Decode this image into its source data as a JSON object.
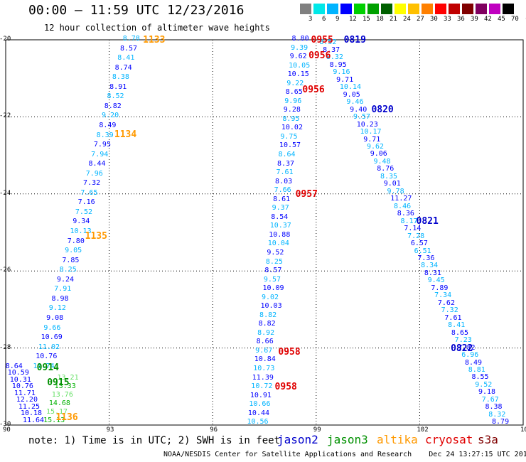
{
  "header": {
    "title": "00:00 — 11:59 UTC 12/23/2016",
    "subtitle": "12 hour collection of altimeter wave heights"
  },
  "color_scale": {
    "labels": [
      "3",
      "6",
      "9",
      "12",
      "15",
      "18",
      "21",
      "24",
      "27",
      "30",
      "33",
      "36",
      "39",
      "42",
      "45",
      "70",
      "(ft)"
    ],
    "colors": [
      "#808080",
      "#00e8e8",
      "#00b4ff",
      "#0000ff",
      "#00d000",
      "#00a000",
      "#006000",
      "#ffff00",
      "#ffc000",
      "#ff8000",
      "#ff0000",
      "#c00000",
      "#800000",
      "#800060",
      "#c000c0",
      "#000000"
    ]
  },
  "map": {
    "lon_ticks": [
      "90",
      "93",
      "96",
      "99",
      "102",
      "105"
    ],
    "lat_ticks": [
      "-20",
      "-22",
      "-24",
      "-26",
      "-28",
      "-30"
    ],
    "lon_range": [
      90,
      105
    ],
    "lat_range": [
      -20,
      -30
    ]
  },
  "legend": {
    "note": "note: 1) Time is in UTC; 2) SWH is in feet",
    "satellites": [
      {
        "name": "jason2",
        "color": "#0000cc"
      },
      {
        "name": "jason3",
        "color": "#009000"
      },
      {
        "name": "altika",
        "color": "#ff9900"
      },
      {
        "name": "cryosat",
        "color": "#e00000"
      },
      {
        "name": "s3a",
        "color": "#800000"
      }
    ]
  },
  "credit": "NOAA/NESDIS Center for Satellite Applications and Research    Dec 24 13:27:15 UTC 2016",
  "track_labels": [
    {
      "text": "1133",
      "lon": 93.98,
      "lat": -20.0,
      "color": "#ff9900"
    },
    {
      "text": "1134",
      "lon": 93.15,
      "lat": -22.45,
      "color": "#ff9900"
    },
    {
      "text": "1135",
      "lon": 92.3,
      "lat": -25.1,
      "color": "#ff9900"
    },
    {
      "text": "1136",
      "lon": 91.45,
      "lat": -29.8,
      "color": "#ff9900"
    },
    {
      "text": "0955",
      "lon": 98.85,
      "lat": -20.0,
      "color": "#e00000"
    },
    {
      "text": "0956",
      "lon": 98.78,
      "lat": -20.4,
      "color": "#e00000"
    },
    {
      "text": "0956",
      "lon": 98.6,
      "lat": -21.3,
      "color": "#e00000"
    },
    {
      "text": "0957",
      "lon": 98.4,
      "lat": -24.0,
      "color": "#e00000"
    },
    {
      "text": "0958",
      "lon": 97.9,
      "lat": -28.1,
      "color": "#e00000"
    },
    {
      "text": "0958",
      "lon": 97.8,
      "lat": -29.0,
      "color": "#e00000"
    },
    {
      "text": "0819",
      "lon": 99.8,
      "lat": -20.0,
      "color": "#0000cc"
    },
    {
      "text": "0820",
      "lon": 100.6,
      "lat": -21.8,
      "color": "#0000cc"
    },
    {
      "text": "0821",
      "lon": 101.9,
      "lat": -24.7,
      "color": "#0000cc"
    },
    {
      "text": "0822",
      "lon": 102.9,
      "lat": -28.0,
      "color": "#0000cc"
    },
    {
      "text": "0914",
      "lon": 90.9,
      "lat": -28.5,
      "color": "#009000"
    },
    {
      "text": "0915",
      "lon": 91.2,
      "lat": -28.9,
      "color": "#009000"
    }
  ],
  "tracks": [
    {
      "name": "altika-track",
      "color_pattern": [
        "#00b4ff",
        "#0000ff"
      ],
      "lon_start": 93.6,
      "lon_end": 91.0,
      "lat_start": -20.0,
      "lat_end": -28.5,
      "values": [
        "8.78",
        "8.57",
        "8.41",
        "8.74",
        "8.38",
        "8.91",
        "8.52",
        "8.82",
        "9.20",
        "8.49",
        "8.39",
        "7.95",
        "7.94",
        "8.44",
        "7.96",
        "7.32",
        "7.65",
        "7.16",
        "7.52",
        "9.34",
        "10.13",
        "7.80",
        "9.05",
        "7.85",
        "8.25",
        "9.24",
        "7.91",
        "8.98",
        "9.12",
        "9.08",
        "9.66",
        "10.69",
        "11.02",
        "10.76",
        "11.74"
      ]
    },
    {
      "name": "jason3-track-upper",
      "color_pattern": [
        "#00b4ff",
        "#00c4c4"
      ],
      "lon_start": 90.3,
      "lon_end": 90.3,
      "lat_start": -28.5,
      "lat_end": -28.5,
      "values": []
    },
    {
      "name": "cryosat-track",
      "color_pattern": [
        "#0000ff",
        "#00b4ff"
      ],
      "lon_start": 98.5,
      "lon_end": 97.2,
      "lat_start": -20.0,
      "lat_end": -29.95,
      "values": [
        "8.80",
        "9.39",
        "9.62",
        "10.05",
        "10.15",
        "9.22",
        "8.65",
        "9.96",
        "9.28",
        "8.95",
        "10.02",
        "9.75",
        "10.57",
        "8.64",
        "8.37",
        "7.61",
        "8.03",
        "7.66",
        "8.61",
        "9.37",
        "8.54",
        "10.37",
        "10.88",
        "10.04",
        "9.52",
        "8.25",
        "8.57",
        "9.57",
        "10.09",
        "9.02",
        "10.03",
        "8.82",
        "8.82",
        "8.92",
        "8.66",
        "9.67",
        "10.84",
        "10.73",
        "11.39",
        "10.72",
        "10.91",
        "10.66",
        "10.44",
        "10.56"
      ]
    },
    {
      "name": "jason2-track",
      "color_pattern": [
        "#00b4ff",
        "#0000ff"
      ],
      "lon_start": 99.3,
      "lon_end": 104.3,
      "lat_start": -20.1,
      "lat_end": -29.95,
      "values": [
        "8.52",
        "8.37",
        "8.32",
        "8.95",
        "9.16",
        "9.71",
        "10.14",
        "9.05",
        "9.46",
        "9.40",
        "9.57",
        "10.23",
        "10.17",
        "9.71",
        "9.62",
        "9.06",
        "9.48",
        "8.76",
        "8.35",
        "9.01",
        "9.78",
        "11.27",
        "8.46",
        "8.36",
        "8.17",
        "7.14",
        "7.28",
        "6.57",
        "6.51",
        "7.36",
        "8.34",
        "8.31",
        "9.45",
        "7.89",
        "7.34",
        "7.62",
        "7.32",
        "7.61",
        "8.41",
        "8.65",
        "7.23",
        "7.82",
        "6.96",
        "8.49",
        "8.81",
        "8.55",
        "9.52",
        "9.18",
        "7.67",
        "8.38",
        "8.32",
        "8.79"
      ]
    },
    {
      "name": "jason3-track-lower",
      "color_pattern": [
        "#0000ff",
        "#0000ff"
      ],
      "lon_start": 90.2,
      "lon_end": 90.7,
      "lat_start": -28.5,
      "lat_end": -29.9,
      "values": [
        "8.64",
        "10.59",
        "10.31",
        "10.76",
        "11.71",
        "12.20",
        "11.25",
        "10.18",
        "11.64"
      ]
    },
    {
      "name": "jason3-track-green",
      "color_pattern": [
        "#66e066",
        "#00b000"
      ],
      "lon_start": 91.7,
      "lon_end": 91.3,
      "lat_start": -28.8,
      "lat_end": -29.9,
      "values": [
        "13.21",
        "13.33",
        "13.76",
        "14.68",
        "15.17",
        "15.13"
      ]
    }
  ]
}
